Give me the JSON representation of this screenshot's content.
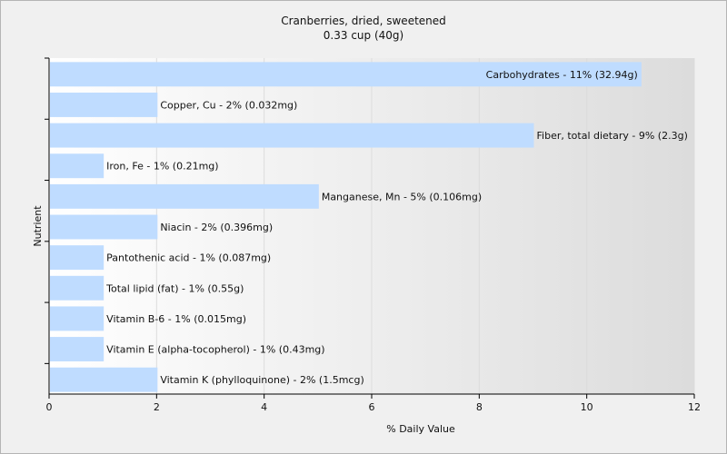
{
  "chart_data": {
    "type": "bar",
    "orientation": "horizontal",
    "title": "Cranberries, dried, sweetened",
    "subtitle": "0.33 cup (40g)",
    "xlabel": "% Daily Value",
    "ylabel": "Nutrient",
    "xlim": [
      0,
      12
    ],
    "xticks": [
      "0",
      "2",
      "4",
      "6",
      "8",
      "10",
      "12"
    ],
    "grid": true,
    "categories": [
      "Carbohydrates",
      "Copper, Cu",
      "Fiber, total dietary",
      "Iron, Fe",
      "Manganese, Mn",
      "Niacin",
      "Pantothenic acid",
      "Total lipid (fat)",
      "Vitamin B-6",
      "Vitamin E (alpha-tocopherol)",
      "Vitamin K (phylloquinone)"
    ],
    "values": [
      11,
      2,
      9,
      1,
      5,
      2,
      1,
      1,
      1,
      1,
      2
    ],
    "labels": [
      "Carbohydrates - 11% (32.94g)",
      "Copper, Cu - 2% (0.032mg)",
      "Fiber, total dietary - 9% (2.3g)",
      "Iron, Fe - 1% (0.21mg)",
      "Manganese, Mn - 5% (0.106mg)",
      "Niacin - 2% (0.396mg)",
      "Pantothenic acid - 1% (0.087mg)",
      "Total lipid (fat) - 1% (0.55g)",
      "Vitamin B-6 - 1% (0.015mg)",
      "Vitamin E (alpha-tocopherol) - 1% (0.43mg)",
      "Vitamin K (phylloquinone) - 2% (1.5mcg)"
    ],
    "colors": {
      "bar": "#bfdcff",
      "plot_background_start": "#ffffff",
      "plot_background_end": "#dcdcdc",
      "gridline": "#dcdcdc",
      "axis": "#000000"
    }
  }
}
